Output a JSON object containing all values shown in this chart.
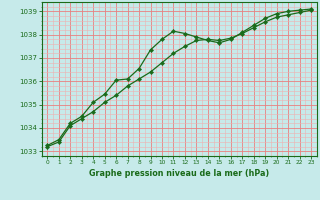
{
  "bg_color": "#c6eaea",
  "grid_color_major": "#e88080",
  "grid_color_minor": "#f0b0b0",
  "line_color": "#1a6b1a",
  "marker_color": "#1a6b1a",
  "xlabel": "Graphe pression niveau de la mer (hPa)",
  "xlabel_color": "#1a6b1a",
  "ylim": [
    1032.8,
    1039.4
  ],
  "xlim": [
    -0.5,
    23.5
  ],
  "yticks": [
    1033,
    1034,
    1035,
    1036,
    1037,
    1038,
    1039
  ],
  "xticks": [
    0,
    1,
    2,
    3,
    4,
    5,
    6,
    7,
    8,
    9,
    10,
    11,
    12,
    13,
    14,
    15,
    16,
    17,
    18,
    19,
    20,
    21,
    22,
    23
  ],
  "series1_x": [
    0,
    1,
    2,
    3,
    4,
    5,
    6,
    7,
    8,
    9,
    10,
    11,
    12,
    13,
    14,
    15,
    16,
    17,
    18,
    19,
    20,
    21,
    22,
    23
  ],
  "series1_y": [
    1033.2,
    1033.4,
    1034.1,
    1034.4,
    1034.7,
    1035.1,
    1035.4,
    1035.8,
    1036.1,
    1036.4,
    1036.8,
    1037.2,
    1037.5,
    1037.75,
    1037.8,
    1037.75,
    1037.85,
    1038.05,
    1038.3,
    1038.55,
    1038.75,
    1038.85,
    1038.95,
    1039.05
  ],
  "series2_x": [
    0,
    1,
    2,
    3,
    4,
    5,
    6,
    7,
    8,
    9,
    10,
    11,
    12,
    13,
    14,
    15,
    16,
    17,
    18,
    19,
    20,
    21,
    22,
    23
  ],
  "series2_y": [
    1033.25,
    1033.5,
    1034.2,
    1034.5,
    1035.1,
    1035.45,
    1036.05,
    1036.1,
    1036.55,
    1037.35,
    1037.8,
    1038.15,
    1038.05,
    1037.9,
    1037.75,
    1037.65,
    1037.8,
    1038.1,
    1038.4,
    1038.7,
    1038.9,
    1039.0,
    1039.05,
    1039.1
  ]
}
